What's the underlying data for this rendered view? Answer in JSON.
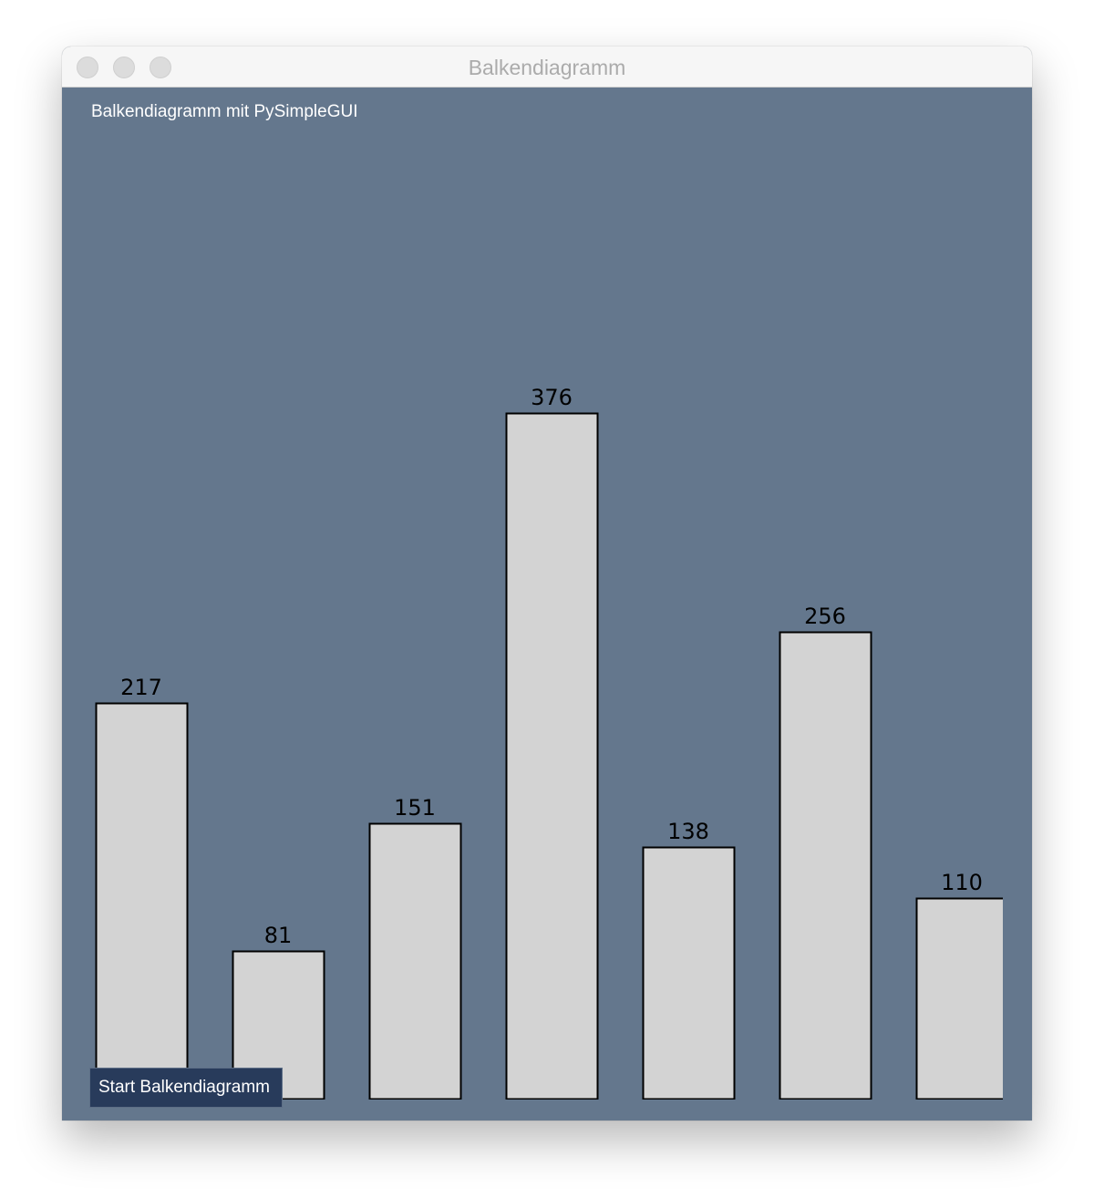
{
  "window": {
    "title": "Balkendiagramm"
  },
  "heading": "Balkendiagramm mit PySimpleGUI",
  "buttons": {
    "start_label": "Start Balkendiagramm"
  },
  "colors": {
    "background": "#64778d",
    "bar_fill": "#d3d3d3",
    "bar_outline": "#000000",
    "button_bg": "#283b5b"
  },
  "chart_data": {
    "type": "bar",
    "values": [
      217,
      81,
      151,
      376,
      138,
      256,
      110
    ],
    "ylim": [
      0,
      532
    ],
    "grid": false,
    "data_labels": true
  }
}
